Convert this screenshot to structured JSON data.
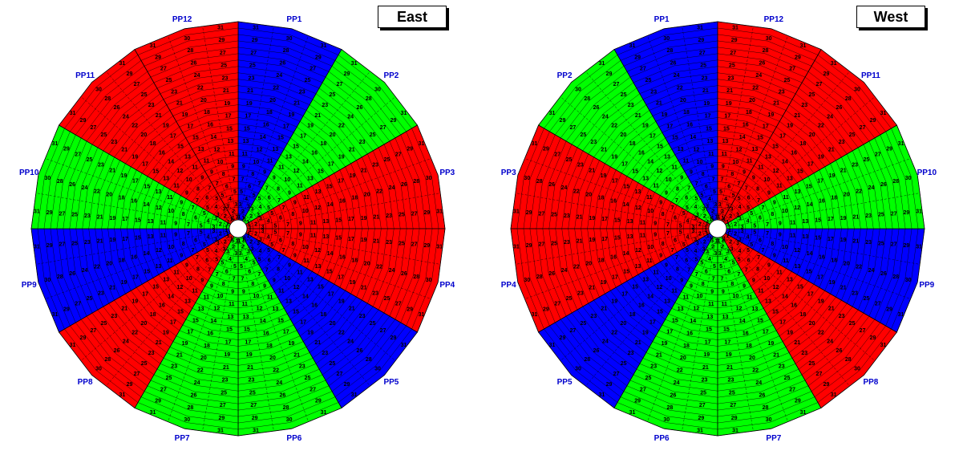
{
  "wheels": [
    {
      "title": "East",
      "sectors": [
        {
          "label": "PP1",
          "color": "#0000ff"
        },
        {
          "label": "PP2",
          "color": "#00ff00"
        },
        {
          "label": "PP3",
          "color": "#ff0000"
        },
        {
          "label": "PP4",
          "color": "#ff0000"
        },
        {
          "label": "PP5",
          "color": "#0000ff"
        },
        {
          "label": "PP6",
          "color": "#00ff00"
        },
        {
          "label": "PP7",
          "color": "#00ff00"
        },
        {
          "label": "PP8",
          "color": "#ff0000"
        },
        {
          "label": "PP9",
          "color": "#0000ff"
        },
        {
          "label": "PP10",
          "color": "#00ff00"
        },
        {
          "label": "PP11",
          "color": "#ff0000"
        },
        {
          "label": "PP12",
          "color": "#ff0000"
        }
      ],
      "direction": "clockwise"
    },
    {
      "title": "West",
      "sectors": [
        {
          "label": "PP1",
          "color": "#0000ff"
        },
        {
          "label": "PP2",
          "color": "#00ff00"
        },
        {
          "label": "PP3",
          "color": "#ff0000"
        },
        {
          "label": "PP4",
          "color": "#ff0000"
        },
        {
          "label": "PP5",
          "color": "#0000ff"
        },
        {
          "label": "PP6",
          "color": "#00ff00"
        },
        {
          "label": "PP7",
          "color": "#00ff00"
        },
        {
          "label": "PP8",
          "color": "#ff0000"
        },
        {
          "label": "PP9",
          "color": "#0000ff"
        },
        {
          "label": "PP10",
          "color": "#00ff00"
        },
        {
          "label": "PP11",
          "color": "#ff0000"
        },
        {
          "label": "PP12",
          "color": "#ff0000"
        }
      ],
      "direction": "counterclockwise"
    }
  ],
  "ring_numbers": [
    1,
    2,
    3,
    4,
    5,
    6,
    7,
    8,
    9,
    10,
    11,
    12,
    13,
    14,
    15,
    16,
    17,
    18,
    19,
    20,
    21,
    22,
    23,
    24,
    25,
    26,
    27,
    28,
    29,
    30,
    31
  ],
  "colors": {
    "label": "#0000cc",
    "line": "#000000"
  }
}
